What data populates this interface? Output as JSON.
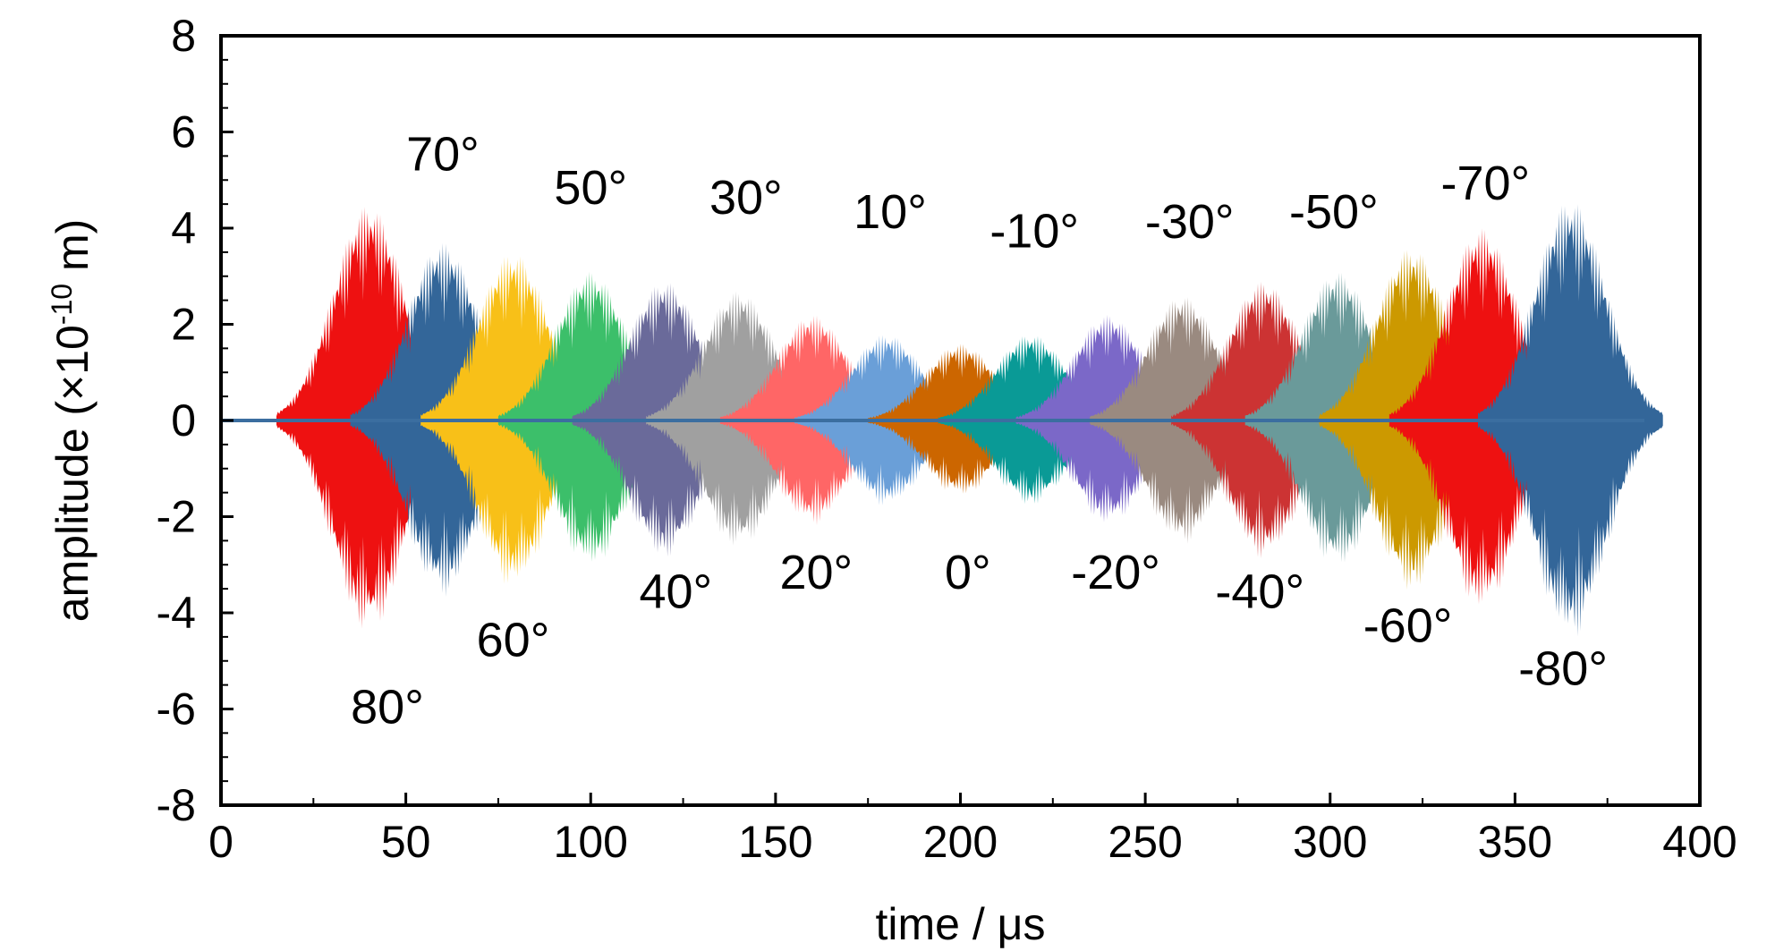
{
  "chart_data": {
    "type": "line",
    "title": "",
    "xlabel": "time / μs",
    "ylabel": "amplitude (×10",
    "ylabel_exp": "-10",
    "ylabel_unit": " m)",
    "xlim": [
      0,
      400
    ],
    "ylim": [
      -8,
      8
    ],
    "xticks": [
      "0",
      "50",
      "100",
      "150",
      "200",
      "250",
      "300",
      "350",
      "400"
    ],
    "yticks": [
      "8",
      "6",
      "4",
      "2",
      "0",
      "-2",
      "-4",
      "-6",
      "-8"
    ],
    "xtick_values": [
      0,
      50,
      100,
      150,
      200,
      250,
      300,
      350,
      400
    ],
    "ytick_values": [
      8,
      6,
      4,
      2,
      0,
      -2,
      -4,
      -6,
      -8
    ],
    "grid": false,
    "series": [
      {
        "name": "80°",
        "color": "#ee1111",
        "center": 40,
        "span": 25,
        "amplitude": 4.5
      },
      {
        "name": "70°",
        "color": "#336699",
        "center": 60,
        "span": 25,
        "amplitude": 3.7
      },
      {
        "name": "60°",
        "color": "#f8c018",
        "center": 79,
        "span": 25,
        "amplitude": 3.5
      },
      {
        "name": "50°",
        "color": "#3cbf6a",
        "center": 100,
        "span": 25,
        "amplitude": 3.1
      },
      {
        "name": "40°",
        "color": "#6a6a9a",
        "center": 120,
        "span": 25,
        "amplitude": 2.9
      },
      {
        "name": "30°",
        "color": "#a0a0a0",
        "center": 140,
        "span": 25,
        "amplitude": 2.7
      },
      {
        "name": "20°",
        "color": "#ff6666",
        "center": 160,
        "span": 25,
        "amplitude": 2.2
      },
      {
        "name": "10°",
        "color": "#6a9fd8",
        "center": 180,
        "span": 25,
        "amplitude": 1.8
      },
      {
        "name": "0°",
        "color": "#cc6600",
        "center": 200,
        "span": 25,
        "amplitude": 1.6
      },
      {
        "name": "-10°",
        "color": "#0a9a96",
        "center": 219,
        "span": 25,
        "amplitude": 1.8
      },
      {
        "name": "-20°",
        "color": "#7b68c8",
        "center": 240,
        "span": 25,
        "amplitude": 2.2
      },
      {
        "name": "-30°",
        "color": "#9a8a80",
        "center": 260,
        "span": 25,
        "amplitude": 2.6
      },
      {
        "name": "-40°",
        "color": "#cc3333",
        "center": 282,
        "span": 25,
        "amplitude": 2.9
      },
      {
        "name": "-50°",
        "color": "#6a9a9a",
        "center": 302,
        "span": 25,
        "amplitude": 3.1
      },
      {
        "name": "-60°",
        "color": "#cc9900",
        "center": 322,
        "span": 25,
        "amplitude": 3.6
      },
      {
        "name": "-70°",
        "color": "#ee1111",
        "center": 341,
        "span": 25,
        "amplitude": 4.0
      },
      {
        "name": "-80°",
        "color": "#336699",
        "center": 365,
        "span": 25,
        "amplitude": 4.6
      }
    ],
    "annotations": [
      {
        "text": "80°",
        "x": 45,
        "y": -6.3
      },
      {
        "text": "70°",
        "x": 60,
        "y": 5.2
      },
      {
        "text": "60°",
        "x": 79,
        "y": -4.9
      },
      {
        "text": "50°",
        "x": 100,
        "y": 4.5
      },
      {
        "text": "40°",
        "x": 123,
        "y": -3.9
      },
      {
        "text": "30°",
        "x": 142,
        "y": 4.3
      },
      {
        "text": "20°",
        "x": 161,
        "y": -3.5
      },
      {
        "text": "10°",
        "x": 181,
        "y": 4.0
      },
      {
        "text": "0°",
        "x": 202,
        "y": -3.5
      },
      {
        "text": "-10°",
        "x": 220,
        "y": 3.6
      },
      {
        "text": "-20°",
        "x": 242,
        "y": -3.5
      },
      {
        "text": "-30°",
        "x": 262,
        "y": 3.8
      },
      {
        "text": "-40°",
        "x": 281,
        "y": -3.9
      },
      {
        "text": "-50°",
        "x": 301,
        "y": 4.0
      },
      {
        "text": "-60°",
        "x": 321,
        "y": -4.6
      },
      {
        "text": "-70°",
        "x": 342,
        "y": 4.6
      },
      {
        "text": "-80°",
        "x": 363,
        "y": -5.5
      }
    ]
  }
}
